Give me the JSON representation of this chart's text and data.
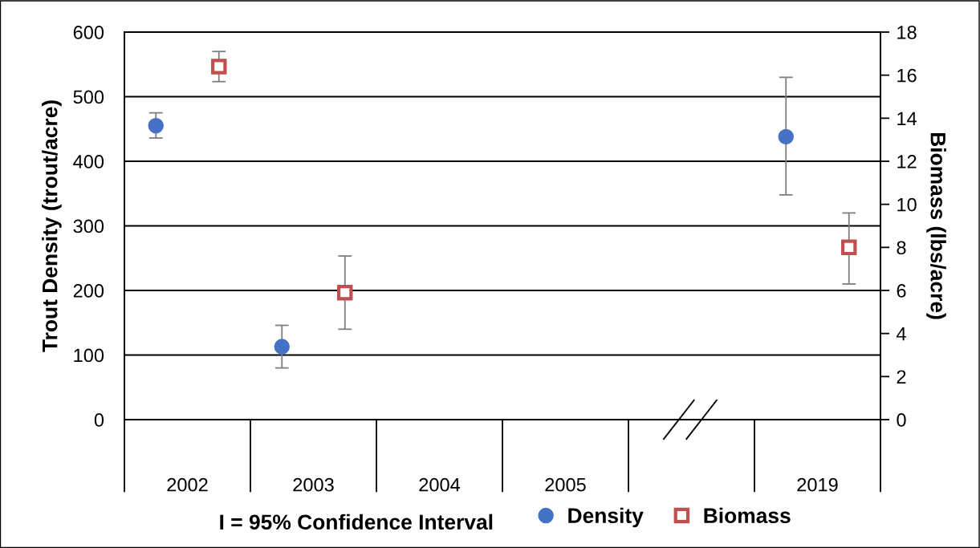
{
  "chart_data": {
    "type": "scatter",
    "categories": [
      "2002",
      "2003",
      "2004",
      "2005",
      null,
      "2019"
    ],
    "ylabel": "Trout Density (trout/acre)",
    "y2label": "Biomass (lbs/acre)",
    "ylim": [
      0,
      600
    ],
    "yticks": [
      0,
      100,
      200,
      300,
      400,
      500,
      600
    ],
    "y2lim": [
      0,
      18
    ],
    "y2ticks": [
      0,
      2,
      4,
      6,
      8,
      10,
      12,
      14,
      16,
      18
    ],
    "grid": "y",
    "legend": "bottom",
    "annotations": [
      "I = 95% Confidence Interval"
    ],
    "series": [
      {
        "name": "Density",
        "color": "#4472c4",
        "marker": "circle",
        "values": [
          455,
          113,
          null,
          null,
          null,
          438
        ],
        "errors": [
          [
            436,
            475
          ],
          [
            80,
            146
          ],
          null,
          null,
          null,
          [
            348,
            530
          ]
        ]
      },
      {
        "name": "Biomass",
        "color": "#c0504d",
        "marker": "square",
        "axis": "y2",
        "values": [
          16.4,
          5.9,
          null,
          null,
          null,
          8.0
        ],
        "errors": [
          [
            15.7,
            17.1
          ],
          [
            4.2,
            7.6
          ],
          null,
          null,
          null,
          [
            6.3,
            9.6
          ]
        ]
      }
    ]
  }
}
